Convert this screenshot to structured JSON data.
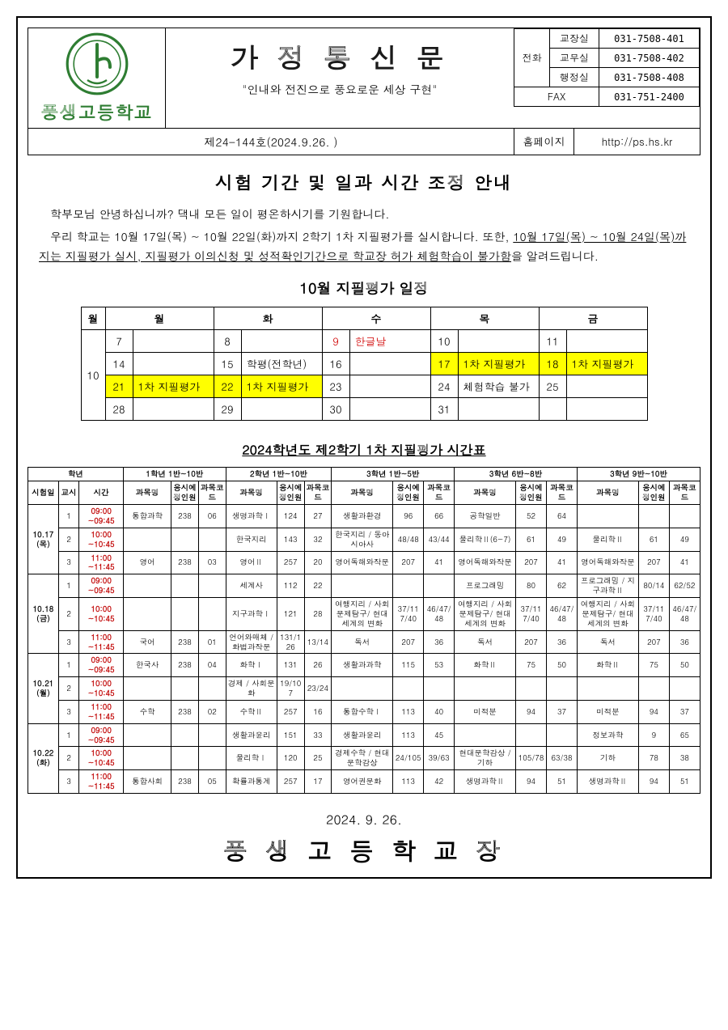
{
  "header": {
    "school_name": "풍생고등학교",
    "title": "가 정 통 신 문",
    "subtitle": "\"인내와 전진으로 풍요로운 세상 구현\"",
    "issue": "제24-144호(2024.9.26. )",
    "phone_label": "전화",
    "contacts": [
      {
        "room": "교장실",
        "num": "031-7508-401"
      },
      {
        "room": "교무실",
        "num": "031-7508-402"
      },
      {
        "room": "행정실",
        "num": "031-7508-408"
      }
    ],
    "fax_label": "FAX",
    "fax": "031-751-2400",
    "homepage_label": "홈페이지",
    "homepage": "http://ps.hs.kr",
    "logo_color": "#2e7d32"
  },
  "body": {
    "main_title": "시험 기간 및 일과 시간 조정 안내",
    "para1": "학부모님 안녕하십니까? 댁내 모든 일이 평온하시기를 기원합니다.",
    "para2a": "우리 학교는 10월 17일(목) ~ 10월 22일(화)까지 2학기 1차 지필평가를 실시합니다. 또한, ",
    "para2b": "10월 17일(목) ~ 10월 24일(목)까지는 지필평가 실시, 지필평가 이의신청 및 성적확인기간으로 학교장 허가 체험학습이 불가함",
    "para2c": "을 알려드립니다.",
    "cal_title": "10월 지필평가 일정",
    "tt_title": "2024학년도 제2학기 1차 지필평가 시간표",
    "footer_date": "2024. 9. 26.",
    "footer_sig": "풍 생 고 등 학 교 장"
  },
  "calendar": {
    "month": "10",
    "days": [
      "월",
      "화",
      "수",
      "목",
      "금"
    ],
    "rows": [
      [
        {
          "d": "7",
          "t": ""
        },
        {
          "d": "8",
          "t": ""
        },
        {
          "d": "9",
          "t": "한글날",
          "red": true
        },
        {
          "d": "10",
          "t": ""
        },
        {
          "d": "11",
          "t": ""
        }
      ],
      [
        {
          "d": "14",
          "t": ""
        },
        {
          "d": "15",
          "t": "학평(전학년)"
        },
        {
          "d": "16",
          "t": ""
        },
        {
          "d": "17",
          "t": "1차 지필평가",
          "hl": true
        },
        {
          "d": "18",
          "t": "1차 지필평가",
          "hl": true
        }
      ],
      [
        {
          "d": "21",
          "t": "1차 지필평가",
          "hl": true
        },
        {
          "d": "22",
          "t": "1차 지필평가",
          "hl": true
        },
        {
          "d": "23",
          "t": ""
        },
        {
          "d": "24",
          "t": "체험학습 불가"
        },
        {
          "d": "25",
          "t": ""
        }
      ],
      [
        {
          "d": "28",
          "t": ""
        },
        {
          "d": "29",
          "t": ""
        },
        {
          "d": "30",
          "t": ""
        },
        {
          "d": "31",
          "t": ""
        },
        {
          "d": "",
          "t": ""
        }
      ]
    ]
  },
  "timetable": {
    "top_header": [
      "학년",
      "1학년 1반~10반",
      "2학년 1반~10반",
      "3학년 1반~5반",
      "3학년 6반~8반",
      "3학년 9반~10반"
    ],
    "col_header": [
      "시험일",
      "교시",
      "시간",
      "과목명",
      "응시예정인원",
      "과목코드",
      "과목명",
      "응시예정인원",
      "과목코드",
      "과목명",
      "응시예정인원",
      "과목코드",
      "과목명",
      "응시예정인원",
      "과목코드",
      "과목명",
      "응시예정인원",
      "과목코드"
    ],
    "days": [
      {
        "date": "10.17(목)",
        "rows": [
          {
            "p": "1",
            "t": "09:00~09:45",
            "c": [
              [
                "통합과학",
                "238",
                "06"
              ],
              [
                "생명과학Ⅰ",
                "124",
                "27"
              ],
              [
                "생활과환경",
                "96",
                "66"
              ],
              [
                "공학일반",
                "52",
                "64"
              ],
              [
                "",
                "",
                ""
              ]
            ]
          },
          {
            "p": "2",
            "t": "10:00~10:45",
            "c": [
              [
                "",
                "",
                ""
              ],
              [
                "한국지리",
                "143",
                "32"
              ],
              [
                "한국지리 / 동아시아사",
                "48/48",
                "43/44"
              ],
              [
                "물리학Ⅱ(6~7)",
                "61",
                "49"
              ],
              [
                "물리학Ⅱ",
                "61",
                "49"
              ]
            ]
          },
          {
            "p": "3",
            "t": "11:00~11:45",
            "c": [
              [
                "영어",
                "238",
                "03"
              ],
              [
                "영어Ⅱ",
                "257",
                "20"
              ],
              [
                "영어독해와작문",
                "207",
                "41"
              ],
              [
                "영어독해와작문",
                "207",
                "41"
              ],
              [
                "영어독해와작문",
                "207",
                "41"
              ]
            ]
          }
        ]
      },
      {
        "date": "10.18(금)",
        "rows": [
          {
            "p": "1",
            "t": "09:00~09:45",
            "c": [
              [
                "",
                "",
                ""
              ],
              [
                "세계사",
                "112",
                "22"
              ],
              [
                "",
                "",
                ""
              ],
              [
                "프로그래밍",
                "80",
                "62"
              ],
              [
                "프로그래밍 / 지구과학Ⅱ",
                "80/14",
                "62/52"
              ]
            ]
          },
          {
            "p": "2",
            "t": "10:00~10:45",
            "c": [
              [
                "",
                "",
                ""
              ],
              [
                "지구과학Ⅰ",
                "121",
                "28"
              ],
              [
                "여행지리 / 사회문제탐구/ 현대세계의 변화",
                "37/117/40",
                "46/47/48"
              ],
              [
                "여행지리 / 사회문제탐구/ 현대세계의 변화",
                "37/117/40",
                "46/47/48"
              ],
              [
                "여행지리 / 사회문제탐구/ 현대세계의 변화",
                "37/117/40",
                "46/47/48"
              ]
            ]
          },
          {
            "p": "3",
            "t": "11:00~11:45",
            "c": [
              [
                "국어",
                "238",
                "01"
              ],
              [
                "언어와매체 / 화법과작문",
                "131/126",
                "13/14"
              ],
              [
                "독서",
                "207",
                "36"
              ],
              [
                "독서",
                "207",
                "36"
              ],
              [
                "독서",
                "207",
                "36"
              ]
            ]
          }
        ]
      },
      {
        "date": "10.21(월)",
        "rows": [
          {
            "p": "1",
            "t": "09:00~09:45",
            "c": [
              [
                "한국사",
                "238",
                "04"
              ],
              [
                "화학Ⅰ",
                "131",
                "26"
              ],
              [
                "생활과과학",
                "115",
                "53"
              ],
              [
                "화학Ⅱ",
                "75",
                "50"
              ],
              [
                "화학Ⅱ",
                "75",
                "50"
              ]
            ]
          },
          {
            "p": "2",
            "t": "10:00~10:45",
            "c": [
              [
                "",
                "",
                ""
              ],
              [
                "경제 / 사회문화",
                "19/107",
                "23/24"
              ],
              [
                "",
                "",
                ""
              ],
              [
                "",
                "",
                ""
              ],
              [
                "",
                "",
                ""
              ]
            ]
          },
          {
            "p": "3",
            "t": "11:00~11:45",
            "c": [
              [
                "수학",
                "238",
                "02"
              ],
              [
                "수학Ⅱ",
                "257",
                "16"
              ],
              [
                "통합수학Ⅰ",
                "113",
                "40"
              ],
              [
                "미적분",
                "94",
                "37"
              ],
              [
                "미적분",
                "94",
                "37"
              ]
            ]
          }
        ]
      },
      {
        "date": "10.22(화)",
        "rows": [
          {
            "p": "1",
            "t": "09:00~09:45",
            "c": [
              [
                "",
                "",
                ""
              ],
              [
                "생활과윤리",
                "151",
                "33"
              ],
              [
                "생활과윤리",
                "113",
                "45"
              ],
              [
                "",
                "",
                ""
              ],
              [
                "정보과학",
                "9",
                "65"
              ]
            ]
          },
          {
            "p": "2",
            "t": "10:00~10:45",
            "c": [
              [
                "",
                "",
                ""
              ],
              [
                "물리학Ⅰ",
                "120",
                "25"
              ],
              [
                "경제수학 / 현대문학감상",
                "24/105",
                "39/63"
              ],
              [
                "현대문학감상 / 기하",
                "105/78",
                "63/38"
              ],
              [
                "기하",
                "78",
                "38"
              ]
            ]
          },
          {
            "p": "3",
            "t": "11:00~11:45",
            "c": [
              [
                "통합사회",
                "238",
                "05"
              ],
              [
                "확률과통계",
                "257",
                "17"
              ],
              [
                "영어권문화",
                "113",
                "42"
              ],
              [
                "생명과학Ⅱ",
                "94",
                "51"
              ],
              [
                "생명과학Ⅱ",
                "94",
                "51"
              ]
            ]
          }
        ]
      }
    ]
  },
  "colors": {
    "highlight": "#ffff00",
    "red": "#d00000",
    "time_red": "#c00000",
    "logo_green": "#2e7d32"
  }
}
